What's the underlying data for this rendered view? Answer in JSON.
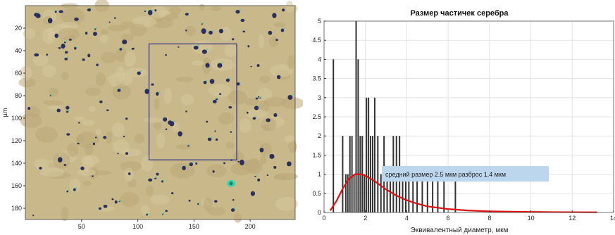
{
  "chart_data": [
    {
      "type": "image",
      "ylabel": "µm",
      "x_ticks": [
        50,
        100,
        150,
        200
      ],
      "y_ticks": [
        20,
        40,
        60,
        80,
        100,
        120,
        140,
        160,
        180
      ],
      "xlim": [
        0,
        240
      ],
      "ylim": [
        0,
        190
      ],
      "colors": {
        "background": "#c9b88a",
        "particle": "#2b2f5e",
        "highlight": "#35d6b0",
        "roi": "#2c2f8a"
      }
    },
    {
      "type": "bar",
      "title": "Размер частичек серебра",
      "xlabel": "Эквивалентный диаметр, мкм",
      "x_ticks": [
        0,
        2,
        4,
        6,
        8,
        10,
        12,
        14
      ],
      "y_ticks": [
        0,
        0.5,
        1,
        1.5,
        2,
        2.5,
        3,
        3.5,
        4,
        4.5,
        5
      ],
      "xlim": [
        0,
        14
      ],
      "ylim": [
        0,
        5
      ],
      "grid": true,
      "annotation": "средний размер  2.5 мкм разброс  1.4 мкм",
      "bars": [
        {
          "x": 0.45,
          "y": 4
        },
        {
          "x": 0.9,
          "y": 2
        },
        {
          "x": 1.05,
          "y": 1
        },
        {
          "x": 1.15,
          "y": 1
        },
        {
          "x": 1.25,
          "y": 2
        },
        {
          "x": 1.35,
          "y": 2
        },
        {
          "x": 1.45,
          "y": 1
        },
        {
          "x": 1.55,
          "y": 5
        },
        {
          "x": 1.65,
          "y": 4
        },
        {
          "x": 1.75,
          "y": 2
        },
        {
          "x": 1.85,
          "y": 2
        },
        {
          "x": 1.95,
          "y": 1
        },
        {
          "x": 2.05,
          "y": 3
        },
        {
          "x": 2.15,
          "y": 3
        },
        {
          "x": 2.25,
          "y": 2
        },
        {
          "x": 2.35,
          "y": 2
        },
        {
          "x": 2.45,
          "y": 3
        },
        {
          "x": 2.6,
          "y": 2
        },
        {
          "x": 2.75,
          "y": 1
        },
        {
          "x": 2.9,
          "y": 2
        },
        {
          "x": 3.05,
          "y": 1
        },
        {
          "x": 3.2,
          "y": 1
        },
        {
          "x": 3.35,
          "y": 2
        },
        {
          "x": 3.5,
          "y": 2
        },
        {
          "x": 3.65,
          "y": 2
        },
        {
          "x": 3.8,
          "y": 1
        },
        {
          "x": 3.95,
          "y": 1
        },
        {
          "x": 4.1,
          "y": 1
        },
        {
          "x": 4.3,
          "y": 1
        },
        {
          "x": 4.5,
          "y": 1
        },
        {
          "x": 4.75,
          "y": 1
        },
        {
          "x": 5.0,
          "y": 1
        },
        {
          "x": 5.25,
          "y": 1
        },
        {
          "x": 5.5,
          "y": 1
        },
        {
          "x": 5.8,
          "y": 1
        },
        {
          "x": 6.35,
          "y": 1
        }
      ],
      "fit_curve": {
        "color": "#dd1111",
        "x": [
          0.3,
          0.6,
          0.9,
          1.2,
          1.5,
          1.8,
          2.1,
          2.5,
          3.0,
          3.5,
          4.0,
          4.5,
          5.0,
          6.0,
          7.0,
          8.0,
          9.0,
          10.0,
          11.0,
          12.0,
          13.2
        ],
        "y": [
          0.05,
          0.3,
          0.62,
          0.88,
          1.0,
          1.0,
          0.93,
          0.8,
          0.6,
          0.44,
          0.32,
          0.23,
          0.16,
          0.09,
          0.05,
          0.03,
          0.02,
          0.015,
          0.01,
          0.008,
          0.005
        ]
      },
      "bar_color": "#333333"
    }
  ]
}
